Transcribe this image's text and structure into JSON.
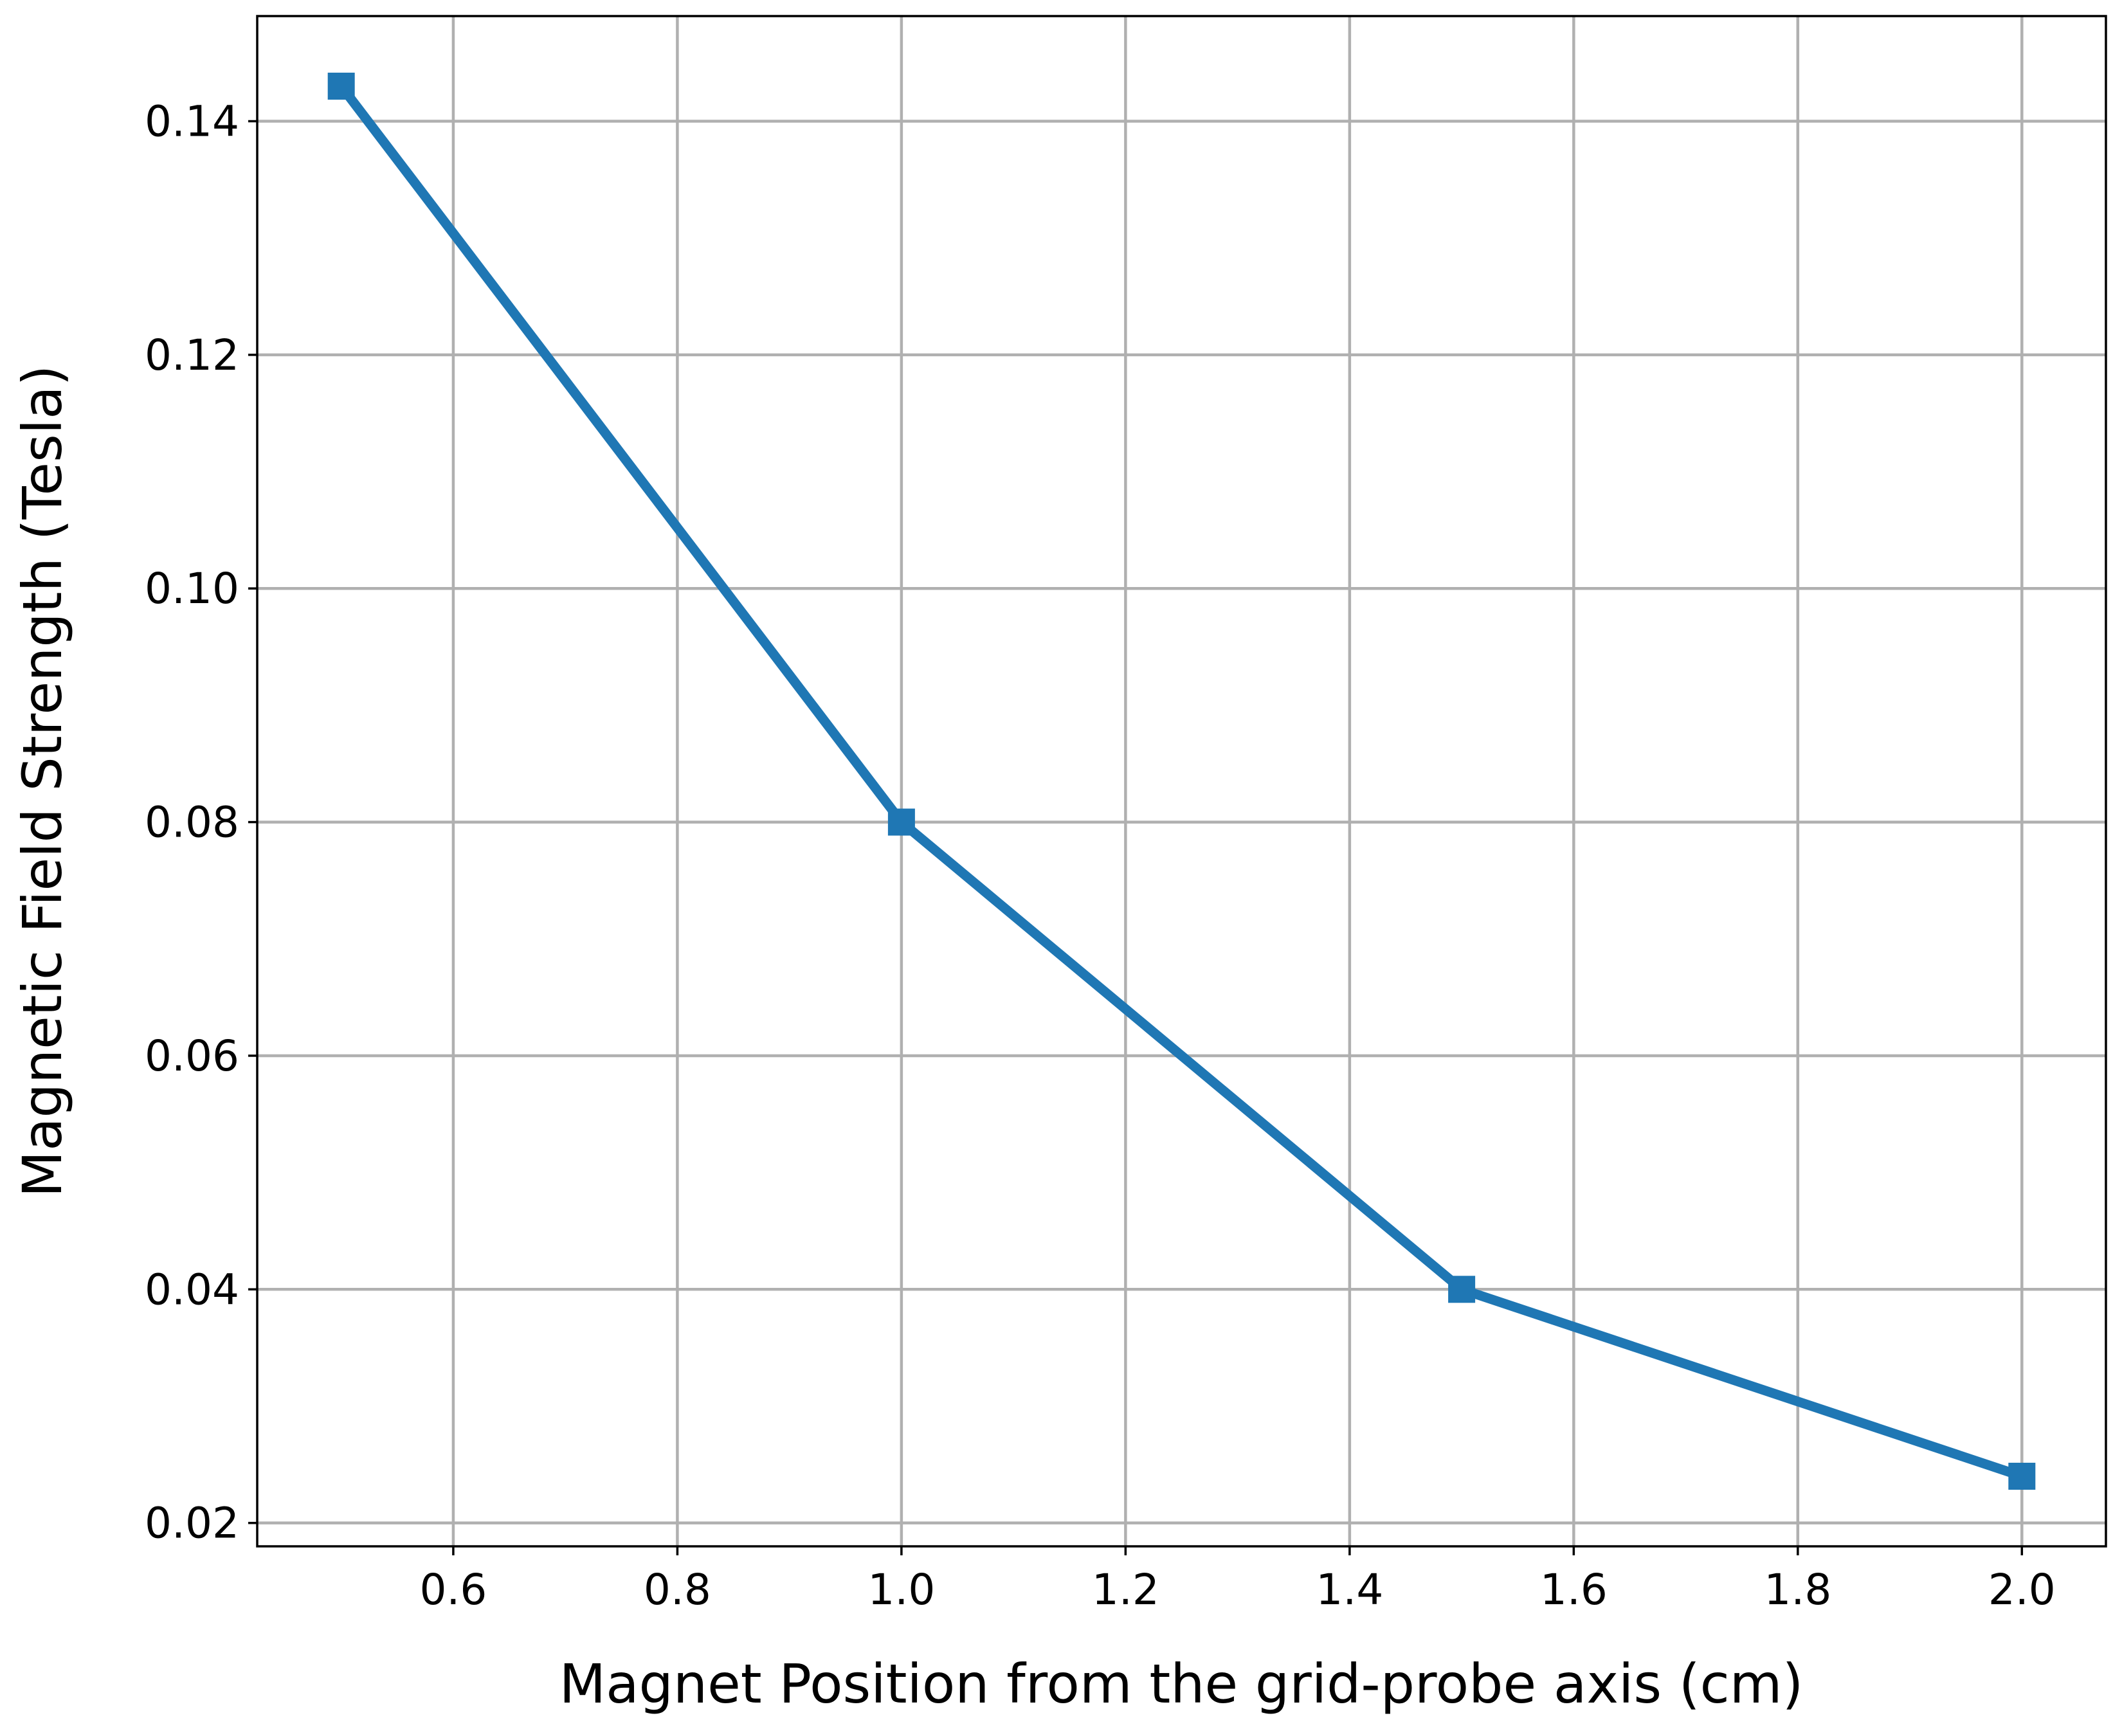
{
  "chart_data": {
    "type": "line",
    "title": "",
    "xlabel": "Magnet Position from the grid-probe axis (cm)",
    "ylabel": "Magnetic Field Strength (Tesla)",
    "xlim": [
      0.425,
      2.075
    ],
    "ylim": [
      0.018,
      0.149
    ],
    "xticks": [
      0.6,
      0.8,
      1.0,
      1.2,
      1.4,
      1.6,
      1.8,
      2.0
    ],
    "xtick_labels": [
      "0.6",
      "0.8",
      "1.0",
      "1.2",
      "1.4",
      "1.6",
      "1.8",
      "2.0"
    ],
    "yticks": [
      0.02,
      0.04,
      0.06,
      0.08,
      0.1,
      0.12,
      0.14
    ],
    "ytick_labels": [
      "0.02",
      "0.04",
      "0.06",
      "0.08",
      "0.10",
      "0.12",
      "0.14"
    ],
    "grid": true,
    "legend": "none",
    "series": [
      {
        "x": [
          0.5,
          1.0,
          1.5,
          2.0
        ],
        "y": [
          0.143,
          0.08,
          0.04,
          0.024
        ],
        "color": "#1f77b4",
        "marker": "square"
      }
    ]
  }
}
